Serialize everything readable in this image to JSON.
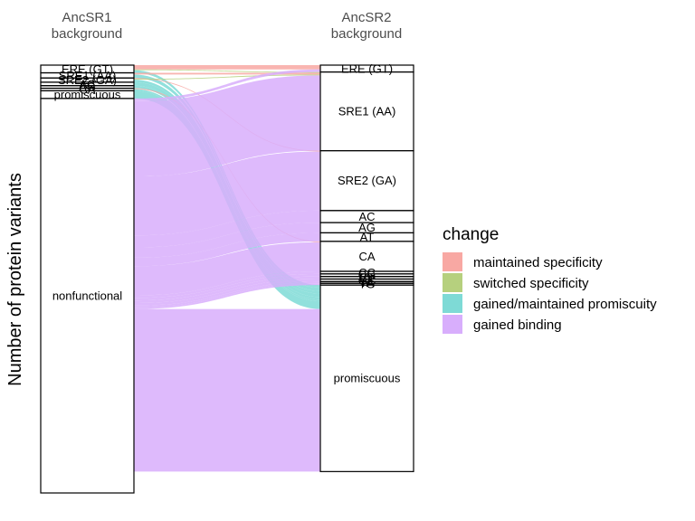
{
  "chart_data": {
    "type": "alluvial",
    "ylabel": "Number of protein variants",
    "axes": [
      "AncSR1\nbackground",
      "AncSR2\nbackground"
    ],
    "strata": {
      "AncSR1": [
        {
          "label": "ERE (GT)",
          "value": 9
        },
        {
          "label": "SRE1 (AA)",
          "value": 6
        },
        {
          "label": "SRE2 (GA)",
          "value": 5
        },
        {
          "label": "AC",
          "value": 4
        },
        {
          "label": "AG",
          "value": 3
        },
        {
          "label": "CA",
          "value": 3
        },
        {
          "label": "promiscuous",
          "value": 9
        },
        {
          "label": "nonfunctional",
          "value": 461
        }
      ],
      "AncSR2": [
        {
          "label": "ERE (GT)",
          "value": 8
        },
        {
          "label": "SRE1 (AA)",
          "value": 92
        },
        {
          "label": "SRE2 (GA)",
          "value": 70
        },
        {
          "label": "AC",
          "value": 14
        },
        {
          "label": "AG",
          "value": 12
        },
        {
          "label": "AT",
          "value": 10
        },
        {
          "label": "CA",
          "value": 35
        },
        {
          "label": "CC",
          "value": 3
        },
        {
          "label": "CG",
          "value": 3
        },
        {
          "label": "CT",
          "value": 3
        },
        {
          "label": "GC",
          "value": 3
        },
        {
          "label": "TA",
          "value": 2
        },
        {
          "label": "TG",
          "value": 2
        },
        {
          "label": "promiscuous",
          "value": 218
        }
      ]
    },
    "flows": [
      {
        "from": "ERE (GT)",
        "to": "ERE (GT)",
        "change": "maintained specificity",
        "value": 5
      },
      {
        "from": "ERE (GT)",
        "to": "SRE1 (AA)",
        "change": "switched specificity",
        "value": 1
      },
      {
        "from": "ERE (GT)",
        "to": "promiscuous",
        "change": "gained/maintained promiscuity",
        "value": 3
      },
      {
        "from": "SRE1 (AA)",
        "to": "SRE1 (AA)",
        "change": "maintained specificity",
        "value": 2
      },
      {
        "from": "SRE1 (AA)",
        "to": "promiscuous",
        "change": "gained/maintained promiscuity",
        "value": 4
      },
      {
        "from": "SRE2 (GA)",
        "to": "SRE2 (GA)",
        "change": "maintained specificity",
        "value": 1
      },
      {
        "from": "SRE2 (GA)",
        "to": "SRE1 (AA)",
        "change": "switched specificity",
        "value": 1
      },
      {
        "from": "SRE2 (GA)",
        "to": "promiscuous",
        "change": "gained/maintained promiscuity",
        "value": 3
      },
      {
        "from": "AC",
        "to": "promiscuous",
        "change": "gained/maintained promiscuity",
        "value": 4
      },
      {
        "from": "AG",
        "to": "promiscuous",
        "change": "gained/maintained promiscuity",
        "value": 3
      },
      {
        "from": "CA",
        "to": "CA",
        "change": "maintained specificity",
        "value": 1
      },
      {
        "from": "CA",
        "to": "promiscuous",
        "change": "gained/maintained promiscuity",
        "value": 2
      },
      {
        "from": "promiscuous",
        "to": "promiscuous",
        "change": "gained/maintained promiscuity",
        "value": 9
      },
      {
        "from": "nonfunctional",
        "to": "ERE (GT)",
        "change": "gained binding",
        "value": 3
      },
      {
        "from": "nonfunctional",
        "to": "SRE1 (AA)",
        "change": "gained binding",
        "value": 88
      },
      {
        "from": "nonfunctional",
        "to": "SRE2 (GA)",
        "change": "gained binding",
        "value": 69
      },
      {
        "from": "nonfunctional",
        "to": "AC",
        "change": "gained binding",
        "value": 14
      },
      {
        "from": "nonfunctional",
        "to": "AG",
        "change": "gained binding",
        "value": 12
      },
      {
        "from": "nonfunctional",
        "to": "AT",
        "change": "gained binding",
        "value": 10
      },
      {
        "from": "nonfunctional",
        "to": "CA",
        "change": "gained binding",
        "value": 34
      },
      {
        "from": "nonfunctional",
        "to": "CC",
        "change": "gained binding",
        "value": 3
      },
      {
        "from": "nonfunctional",
        "to": "CG",
        "change": "gained binding",
        "value": 3
      },
      {
        "from": "nonfunctional",
        "to": "CT",
        "change": "gained binding",
        "value": 3
      },
      {
        "from": "nonfunctional",
        "to": "GC",
        "change": "gained binding",
        "value": 3
      },
      {
        "from": "nonfunctional",
        "to": "TA",
        "change": "gained binding",
        "value": 2
      },
      {
        "from": "nonfunctional",
        "to": "TG",
        "change": "gained binding",
        "value": 2
      },
      {
        "from": "nonfunctional",
        "to": "promiscuous",
        "change": "gained binding",
        "value": 190
      }
    ],
    "legend": {
      "title": "change",
      "position": "right",
      "items": [
        {
          "label": "maintained specificity",
          "color": "#F8A8A3"
        },
        {
          "label": "switched specificity",
          "color": "#B6D07E"
        },
        {
          "label": "gained/maintained promiscuity",
          "color": "#7EDAD6"
        },
        {
          "label": "gained binding",
          "color": "#D8AEFC"
        }
      ]
    },
    "grid": false
  }
}
